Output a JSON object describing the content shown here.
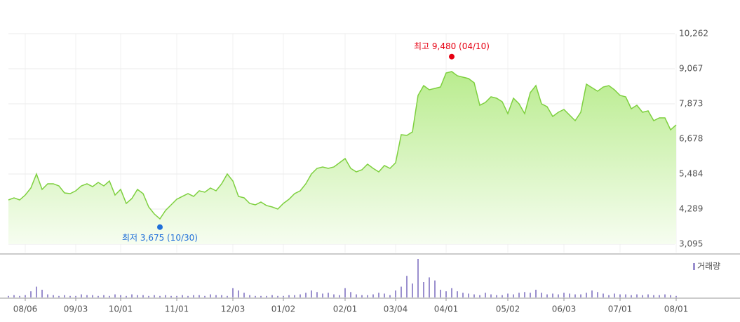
{
  "chart_data": {
    "type": "line",
    "categories": [
      null,
      null,
      null,
      "08/06",
      null,
      null,
      null,
      null,
      null,
      null,
      null,
      null,
      "09/03",
      null,
      null,
      null,
      null,
      null,
      null,
      null,
      "10/01",
      null,
      null,
      null,
      null,
      null,
      null,
      null,
      null,
      null,
      "11/01",
      null,
      null,
      null,
      null,
      null,
      null,
      null,
      null,
      null,
      "12/03",
      null,
      null,
      null,
      null,
      null,
      null,
      null,
      null,
      "01/02",
      null,
      null,
      null,
      null,
      null,
      null,
      null,
      null,
      null,
      null,
      "02/01",
      null,
      null,
      null,
      null,
      null,
      null,
      null,
      null,
      "03/04",
      null,
      null,
      null,
      null,
      null,
      null,
      null,
      null,
      "04/01",
      null,
      null,
      null,
      null,
      null,
      null,
      null,
      null,
      null,
      null,
      "05/02",
      null,
      null,
      null,
      null,
      null,
      null,
      null,
      null,
      null,
      "06/03",
      null,
      null,
      null,
      null,
      null,
      null,
      null,
      null,
      null,
      "07/01",
      null,
      null,
      null,
      null,
      null,
      null,
      null,
      null,
      null,
      "08/01"
    ],
    "series": [
      {
        "color": "#7ed03f",
        "values": [
          4600,
          4672,
          4600,
          4767,
          5006,
          5484,
          4958,
          5150,
          5150,
          5078,
          4839,
          4815,
          4911,
          5078,
          5150,
          5054,
          5197,
          5078,
          5245,
          4767,
          4958,
          4481,
          4648,
          4958,
          4815,
          4361,
          4122,
          3955,
          4242,
          4433,
          4624,
          4720,
          4815,
          4720,
          4911,
          4863,
          5006,
          4911,
          5150,
          5484,
          5245,
          4720,
          4672,
          4481,
          4433,
          4528,
          4409,
          4361,
          4290,
          4481,
          4624,
          4815,
          4911,
          5150,
          5484,
          5675,
          5723,
          5675,
          5723,
          5866,
          6010,
          5675,
          5556,
          5627,
          5818,
          5675,
          5556,
          5771,
          5675,
          5866,
          6822,
          6798,
          6917,
          8160,
          8494,
          8351,
          8399,
          8446,
          8924,
          8972,
          8829,
          8781,
          8733,
          8590,
          7825,
          7921,
          8112,
          8064,
          7945,
          7539,
          8064,
          7873,
          7539,
          8255,
          8494,
          7873,
          7777,
          7443,
          7586,
          7682,
          7491,
          7300,
          7586,
          8542,
          8422,
          8303,
          8446,
          8494,
          8351,
          8160,
          8112,
          7706,
          7825,
          7586,
          7634,
          7300,
          7395,
          7395,
          6989,
          7156
        ]
      }
    ],
    "volume": {
      "name": "거래량",
      "color": "#9a8fce",
      "values": [
        2,
        3,
        2,
        3,
        8,
        14,
        10,
        4,
        3,
        2,
        3,
        2,
        2,
        4,
        3,
        3,
        2,
        3,
        2,
        4,
        3,
        2,
        4,
        3,
        3,
        2,
        3,
        2,
        3,
        2,
        2,
        3,
        2,
        3,
        3,
        2,
        4,
        3,
        3,
        2,
        12,
        9,
        6,
        3,
        2,
        2,
        2,
        3,
        2,
        2,
        3,
        3,
        4,
        6,
        9,
        7,
        5,
        6,
        4,
        3,
        12,
        7,
        4,
        3,
        3,
        4,
        6,
        5,
        3,
        9,
        14,
        28,
        18,
        50,
        20,
        26,
        22,
        10,
        8,
        12,
        8,
        6,
        5,
        4,
        3,
        6,
        4,
        3,
        3,
        5,
        4,
        6,
        7,
        6,
        10,
        6,
        4,
        5,
        4,
        6,
        5,
        4,
        4,
        6,
        9,
        7,
        5,
        3,
        5,
        4,
        4,
        3,
        4,
        3,
        4,
        3,
        3,
        4,
        3,
        2
      ]
    },
    "ylim": [
      3095,
      10262
    ],
    "yticks": [
      {
        "value": 3095,
        "label": "3,095"
      },
      {
        "value": 4289,
        "label": "4,289"
      },
      {
        "value": 5484,
        "label": "5,484"
      },
      {
        "value": 6678,
        "label": "6,678"
      },
      {
        "value": 7873,
        "label": "7,873"
      },
      {
        "value": 9067,
        "label": "9,067"
      },
      {
        "value": 10262,
        "label": "10,262"
      }
    ],
    "grid": true,
    "annotations": [
      {
        "text": "최고 9,480 (04/10)",
        "value": 9480,
        "color": "#e60012"
      },
      {
        "text": "최저 3,675 (10/30)",
        "value": 3675,
        "color": "#1f6fd9"
      }
    ]
  }
}
